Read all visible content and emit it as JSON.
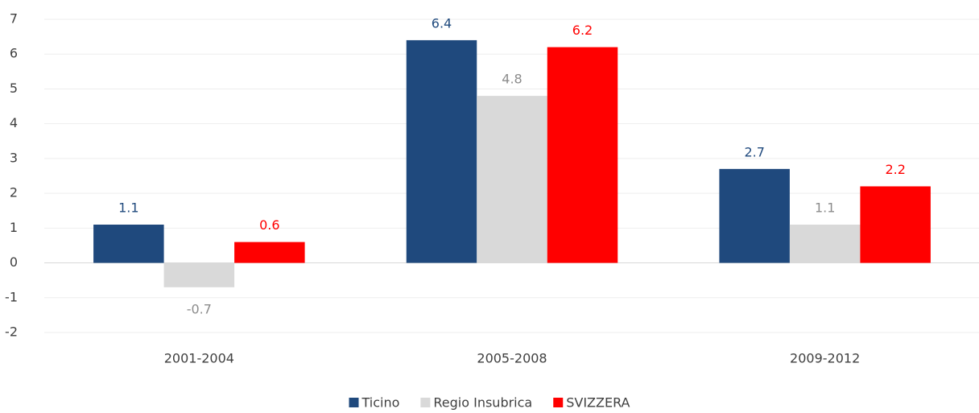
{
  "chart_data": {
    "type": "bar",
    "categories": [
      "2001-2004",
      "2005-2008",
      "2009-2012"
    ],
    "series": [
      {
        "name": "Ticino",
        "color": "#1f497d",
        "label_color": "#1f497d",
        "values": [
          1.1,
          6.4,
          2.7
        ]
      },
      {
        "name": "Regio Insubrica",
        "color": "#d9d9d9",
        "label_color": "#8c8c8c",
        "values": [
          -0.7,
          4.8,
          1.1
        ]
      },
      {
        "name": "SVIZZERA",
        "color": "#ff0000",
        "label_color": "#ff0000",
        "values": [
          0.6,
          6.2,
          2.2
        ]
      }
    ],
    "ylim": [
      -2,
      7
    ],
    "yticks": [
      -2,
      -1,
      0,
      1,
      2,
      3,
      4,
      5,
      6,
      7
    ],
    "grid": true,
    "legend": "bottom"
  }
}
